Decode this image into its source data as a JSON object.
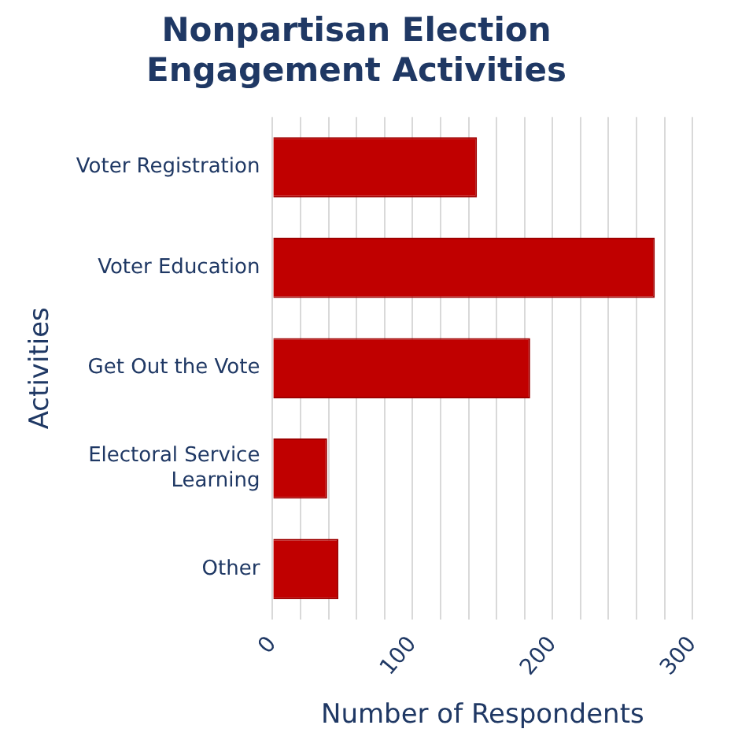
{
  "chart_data": {
    "type": "bar",
    "orientation": "horizontal",
    "title": "Nonpartisan Election Engagement Activities",
    "xlabel": "Number of Respondents",
    "ylabel": "Activities",
    "categories": [
      "Voter Registration",
      "Voter Education",
      "Get Out the Vote",
      "Electoral Service Learning",
      "Other"
    ],
    "values": [
      146,
      273,
      184,
      39,
      47
    ],
    "color": "#c00000",
    "xlim": [
      0,
      300
    ],
    "xticks": [
      0,
      {
        "value": 20,
        "label": null
      },
      {
        "value": 40,
        "label": null
      },
      {
        "value": 60,
        "label": null
      },
      {
        "value": 80,
        "label": null
      },
      100,
      {
        "value": 120,
        "label": null
      },
      {
        "value": 140,
        "label": null
      },
      {
        "value": 160,
        "label": null
      },
      {
        "value": 180,
        "label": null
      },
      200,
      {
        "value": 220,
        "label": null
      },
      {
        "value": 240,
        "label": null
      },
      {
        "value": 260,
        "label": null
      },
      {
        "value": 280,
        "label": null
      },
      300
    ],
    "grid": "x",
    "legend": false
  }
}
